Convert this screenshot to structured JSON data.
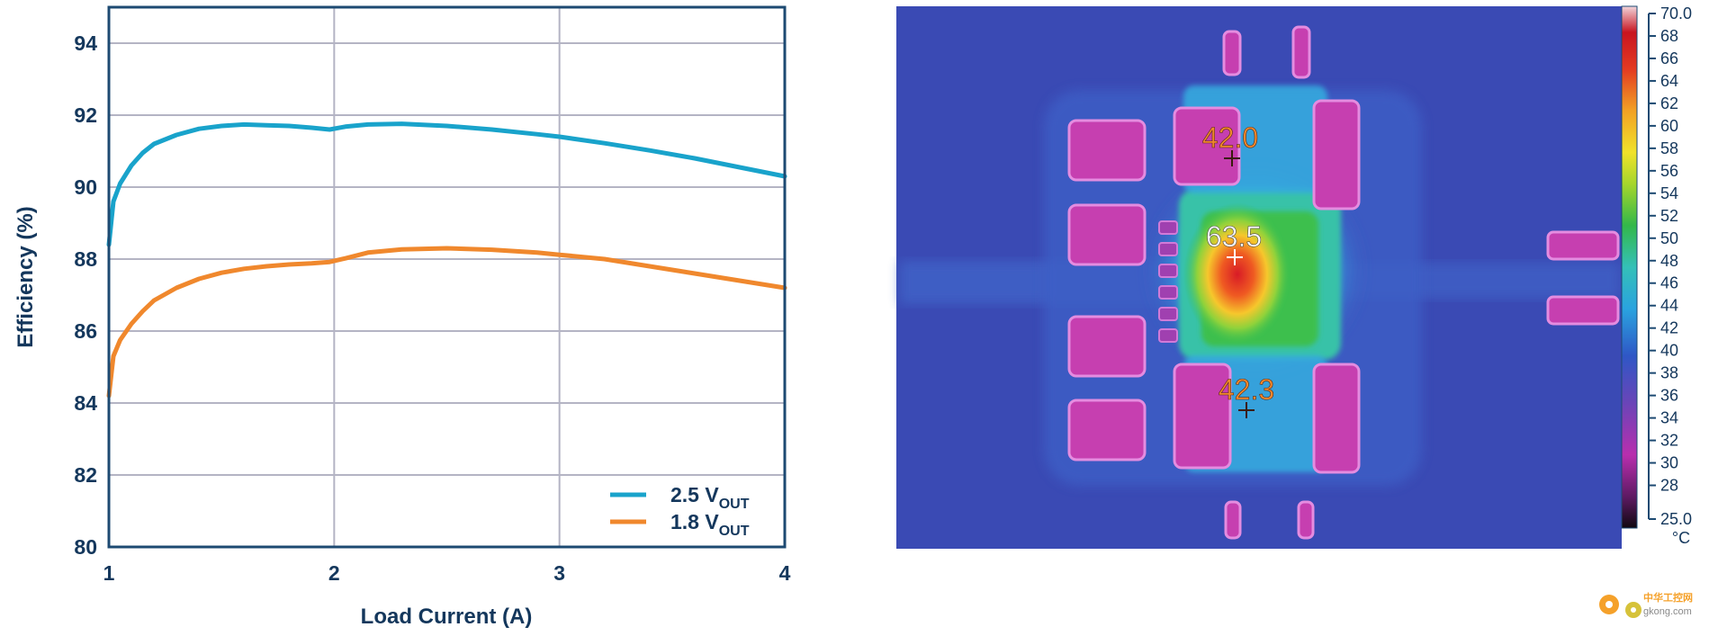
{
  "chart_data": [
    {
      "type": "line",
      "title": "",
      "xlabel": "Load Current (A)",
      "ylabel": "Efficiency (%)",
      "xlim": [
        1,
        4
      ],
      "ylim": [
        80,
        95
      ],
      "xticks": [
        1,
        2,
        3,
        4
      ],
      "yticks": [
        80,
        82,
        84,
        86,
        88,
        90,
        92,
        94
      ],
      "grid": true,
      "legend_position": "bottom-right",
      "series": [
        {
          "name": "2.5 VOUT",
          "name_main": "2.5 V",
          "name_sub": "OUT",
          "color": "#19a3cb",
          "x": [
            1.0,
            1.02,
            1.05,
            1.1,
            1.15,
            1.2,
            1.3,
            1.4,
            1.5,
            1.6,
            1.7,
            1.8,
            1.9,
            1.98,
            2.05,
            2.15,
            2.3,
            2.5,
            2.7,
            2.9,
            3.0,
            3.2,
            3.4,
            3.6,
            3.8,
            4.0
          ],
          "y": [
            88.4,
            89.6,
            90.1,
            90.6,
            90.95,
            91.2,
            91.45,
            91.62,
            91.7,
            91.74,
            91.72,
            91.7,
            91.65,
            91.6,
            91.68,
            91.74,
            91.76,
            91.7,
            91.6,
            91.47,
            91.4,
            91.22,
            91.02,
            90.8,
            90.55,
            90.3
          ]
        },
        {
          "name": "1.8 VOUT",
          "name_main": "1.8 V",
          "name_sub": "OUT",
          "color": "#f0882d",
          "x": [
            1.0,
            1.02,
            1.05,
            1.1,
            1.15,
            1.2,
            1.3,
            1.4,
            1.5,
            1.6,
            1.7,
            1.8,
            1.9,
            1.98,
            2.05,
            2.15,
            2.3,
            2.5,
            2.7,
            2.9,
            3.0,
            3.2,
            3.4,
            3.6,
            3.8,
            4.0
          ],
          "y": [
            84.2,
            85.3,
            85.75,
            86.2,
            86.55,
            86.85,
            87.2,
            87.45,
            87.62,
            87.73,
            87.8,
            87.85,
            87.88,
            87.92,
            88.02,
            88.18,
            88.27,
            88.3,
            88.26,
            88.18,
            88.12,
            88.0,
            87.8,
            87.6,
            87.4,
            87.2
          ]
        }
      ]
    },
    {
      "type": "heatmap",
      "colorbar_unit": "°C",
      "colorbar_range": [
        25.0,
        70.0
      ],
      "colorbar_ticks": [
        "70.0",
        "68",
        "66",
        "64",
        "62",
        "60",
        "58",
        "56",
        "54",
        "52",
        "50",
        "48",
        "46",
        "44",
        "42",
        "40",
        "38",
        "36",
        "34",
        "32",
        "30",
        "28",
        "25.0"
      ],
      "colorbar_tick_values": [
        70,
        68,
        66,
        64,
        62,
        60,
        58,
        56,
        54,
        52,
        50,
        48,
        46,
        44,
        42,
        40,
        38,
        36,
        34,
        32,
        30,
        28,
        25
      ],
      "spots": [
        {
          "label": "42.0",
          "color": "#f0882d"
        },
        {
          "label": "63.5",
          "color": "#ffffff"
        },
        {
          "label": "42.3",
          "color": "#f0882d"
        }
      ]
    }
  ],
  "watermark": {
    "line1": "中华工控网",
    "line2": "gkong.com"
  },
  "colors": {
    "axis": "#1d4a72",
    "grid": "#b4b4c4",
    "text": "#14375c"
  }
}
